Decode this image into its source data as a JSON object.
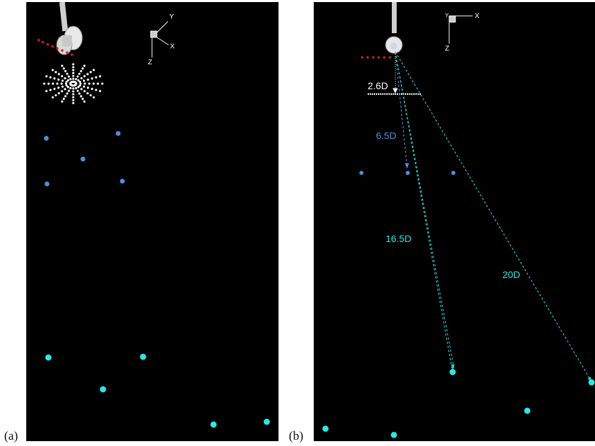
{
  "panels": [
    {
      "label": "(a)",
      "axes": {
        "x": "X",
        "y": "Y",
        "z": "Z"
      }
    },
    {
      "label": "(b)",
      "axes": {
        "x": "X",
        "y": "Y",
        "z": "Z"
      },
      "annotations": {
        "d1": "2.6D",
        "d2": "6.5D",
        "d3": "16.5D",
        "d4": "20D"
      }
    }
  ],
  "colors": {
    "background": "#000000",
    "blue_marker": "#4f8ed8",
    "cyan_marker": "#2ee6e6",
    "red_marker": "#d81e1e",
    "probe": "#d8d8d8"
  }
}
